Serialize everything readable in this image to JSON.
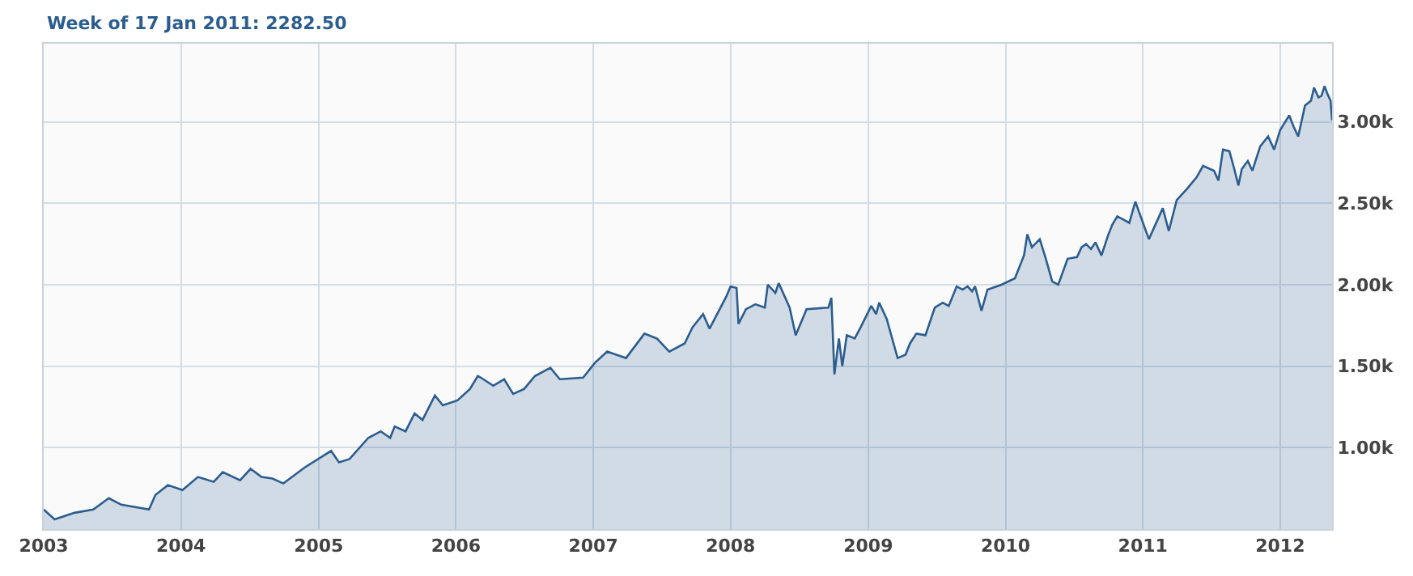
{
  "chart_data": {
    "type": "area",
    "x": [
      "2003-01-01",
      "2003-01-30",
      "2003-03-24",
      "2003-05-13",
      "2003-06-23",
      "2003-07-26",
      "2003-10-08",
      "2003-10-25",
      "2003-11-27",
      "2004-01-05",
      "2004-02-15",
      "2004-03-28",
      "2004-04-21",
      "2004-06-06",
      "2004-07-04",
      "2004-08-02",
      "2004-08-31",
      "2004-09-29",
      "2004-11-26",
      "2005-02-03",
      "2005-02-24",
      "2005-03-24",
      "2005-05-13",
      "2005-06-15",
      "2005-07-10",
      "2005-07-22",
      "2005-08-20",
      "2005-09-13",
      "2005-10-04",
      "2005-11-06",
      "2005-11-27",
      "2006-01-05",
      "2006-02-07",
      "2006-02-28",
      "2006-03-08",
      "2006-04-10",
      "2006-05-09",
      "2006-06-02",
      "2006-07-01",
      "2006-07-30",
      "2006-09-09",
      "2006-10-04",
      "2006-12-05",
      "2007-01-05",
      "2007-02-07",
      "2007-03-29",
      "2007-05-17",
      "2007-06-19",
      "2007-07-22",
      "2007-09-01",
      "2007-09-22",
      "2007-10-20",
      "2007-11-06",
      "2007-12-21",
      "2008-01-01",
      "2008-01-17",
      "2008-01-22",
      "2008-02-11",
      "2008-03-07",
      "2008-04-01",
      "2008-04-09",
      "2008-04-29",
      "2008-05-08",
      "2008-06-06",
      "2008-06-22",
      "2008-07-21",
      "2008-09-17",
      "2008-09-25",
      "2008-10-03",
      "2008-10-15",
      "2008-10-24",
      "2008-11-05",
      "2008-11-26",
      "2008-12-12",
      "2009-01-09",
      "2009-01-22",
      "2009-01-30",
      "2009-02-19",
      "2009-03-20",
      "2009-04-10",
      "2009-04-22",
      "2009-05-09",
      "2009-06-02",
      "2009-06-27",
      "2009-07-18",
      "2009-08-03",
      "2009-08-24",
      "2009-09-09",
      "2009-09-22",
      "2009-10-04",
      "2009-10-12",
      "2009-10-29",
      "2009-11-14",
      "2009-12-21",
      "2010-01-26",
      "2010-02-19",
      "2010-02-28",
      "2010-03-12",
      "2010-04-02",
      "2010-04-18",
      "2010-05-05",
      "2010-05-21",
      "2010-06-15",
      "2010-07-10",
      "2010-07-22",
      "2010-08-03",
      "2010-08-16",
      "2010-08-28",
      "2010-09-13",
      "2010-09-30",
      "2010-10-12",
      "2010-10-25",
      "2010-11-10",
      "2010-11-26",
      "2010-12-12",
      "2011-01-17",
      "2011-02-23",
      "2011-03-11",
      "2011-04-01",
      "2011-04-29",
      "2011-05-24",
      "2011-06-10",
      "2011-07-09",
      "2011-07-21",
      "2011-08-02",
      "2011-08-19",
      "2011-08-31",
      "2011-09-12",
      "2011-09-21",
      "2011-10-07",
      "2011-10-19",
      "2011-11-09",
      "2011-11-30",
      "2011-12-16",
      "2012-01-01",
      "2012-01-25",
      "2012-02-06",
      "2012-02-18",
      "2012-03-07",
      "2012-03-23",
      "2012-03-31",
      "2012-04-12",
      "2012-04-20",
      "2012-04-28",
      "2012-05-06",
      "2012-05-14",
      "2012-05-18"
    ],
    "series": [
      {
        "color": "#2b5d8f",
        "values": [
          620,
          560,
          600,
          620,
          690,
          650,
          620,
          710,
          770,
          740,
          820,
          790,
          850,
          800,
          870,
          820,
          810,
          780,
          880,
          980,
          910,
          930,
          1060,
          1100,
          1060,
          1130,
          1100,
          1210,
          1170,
          1320,
          1260,
          1290,
          1360,
          1440,
          1430,
          1380,
          1420,
          1330,
          1360,
          1440,
          1490,
          1420,
          1430,
          1520,
          1590,
          1550,
          1700,
          1670,
          1590,
          1640,
          1740,
          1820,
          1730,
          1930,
          1990,
          1980,
          1760,
          1850,
          1880,
          1860,
          2000,
          1950,
          2010,
          1860,
          1690,
          1850,
          1860,
          1920,
          1450,
          1670,
          1500,
          1690,
          1670,
          1740,
          1870,
          1820,
          1890,
          1790,
          1550,
          1570,
          1640,
          1700,
          1690,
          1860,
          1890,
          1870,
          1990,
          1970,
          1990,
          1960,
          1990,
          1840,
          1970,
          2000,
          2040,
          2180,
          2310,
          2230,
          2280,
          2160,
          2020,
          2000,
          2160,
          2170,
          2230,
          2250,
          2220,
          2260,
          2180,
          2300,
          2370,
          2420,
          2400,
          2380,
          2510,
          2280,
          2470,
          2330,
          2520,
          2590,
          2660,
          2730,
          2700,
          2640,
          2830,
          2820,
          2720,
          2610,
          2710,
          2760,
          2700,
          2850,
          2910,
          2830,
          2950,
          3040,
          2970,
          2910,
          3100,
          3130,
          3210,
          3150,
          3160,
          3220,
          3170,
          3130,
          3010
        ]
      }
    ],
    "annotations": [
      "Week of 17 Jan 2011: 2282.50"
    ],
    "xlim": [
      "2003-01-01",
      "2012-05-18"
    ],
    "xticks": [
      {
        "value": "2003-01-01",
        "label": "2003"
      },
      {
        "value": "2004-01-01",
        "label": "2004"
      },
      {
        "value": "2005-01-01",
        "label": "2005"
      },
      {
        "value": "2006-01-01",
        "label": "2006"
      },
      {
        "value": "2007-01-01",
        "label": "2007"
      },
      {
        "value": "2008-01-01",
        "label": "2008"
      },
      {
        "value": "2009-01-01",
        "label": "2009"
      },
      {
        "value": "2010-01-01",
        "label": "2010"
      },
      {
        "value": "2011-01-01",
        "label": "2011"
      },
      {
        "value": "2012-01-01",
        "label": "2012"
      }
    ],
    "ylim": [
      500,
      3480
    ],
    "yticks": [
      {
        "value": 1000,
        "label": "1.00k"
      },
      {
        "value": 1500,
        "label": "1.50k"
      },
      {
        "value": 2000,
        "label": "2.00k"
      },
      {
        "value": 2500,
        "label": "2.50k"
      },
      {
        "value": 3000,
        "label": "3.00k"
      }
    ],
    "grid": true
  }
}
